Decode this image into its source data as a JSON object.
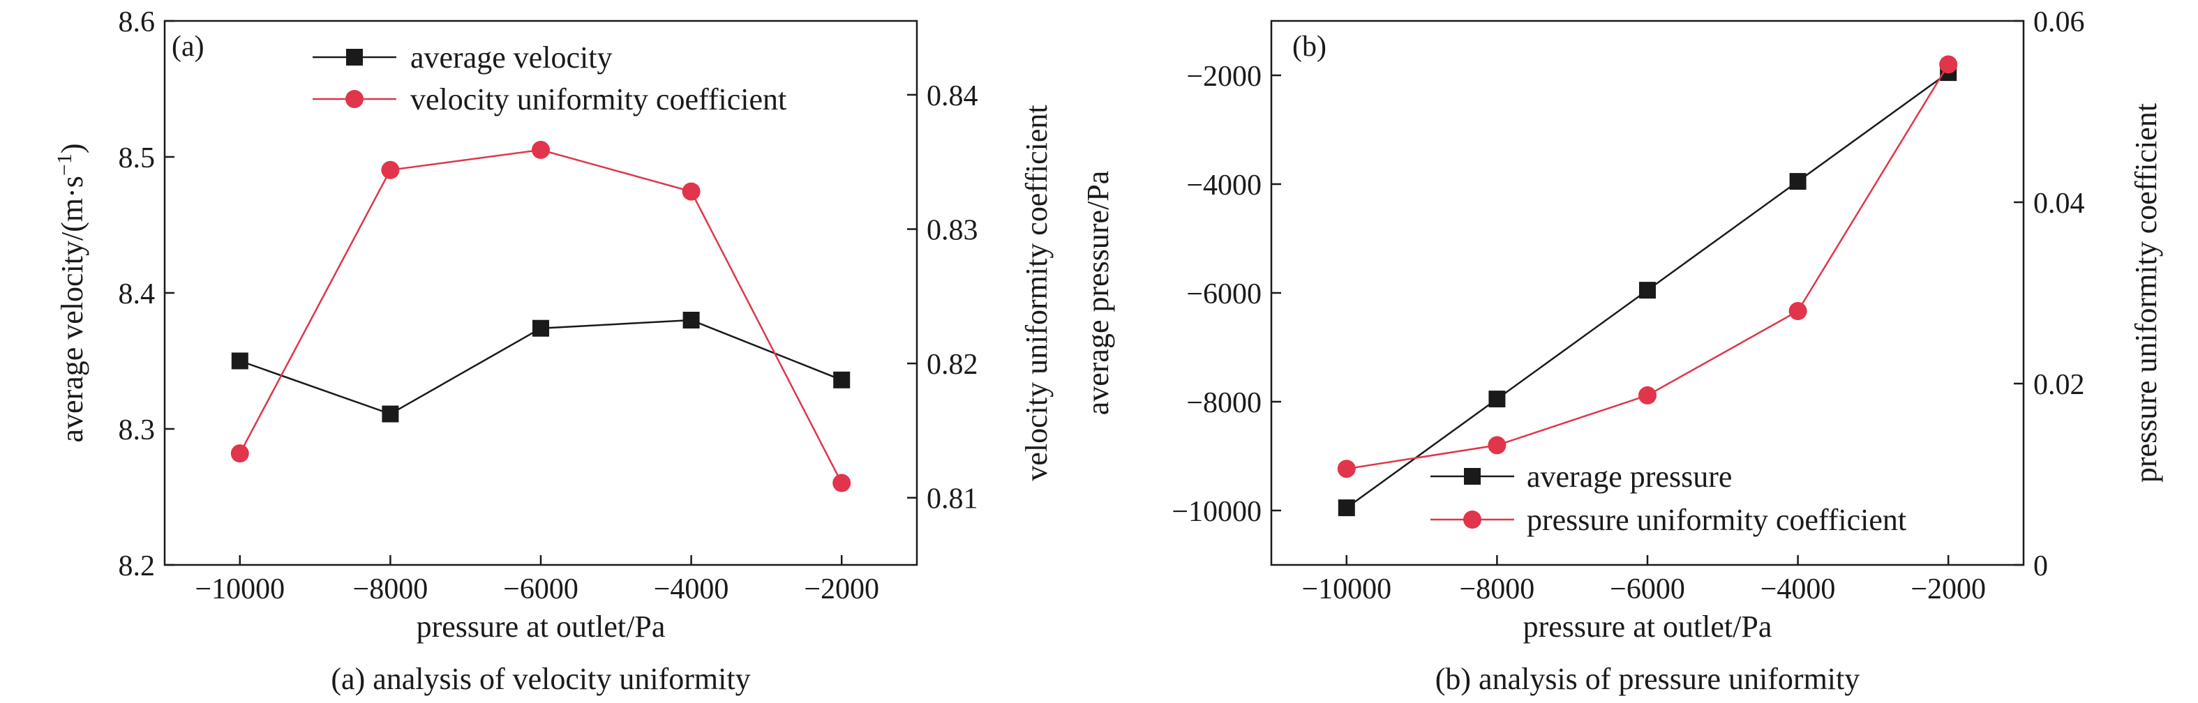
{
  "colors": {
    "black_series": "#1a1a1a",
    "red_series": "#e0354a",
    "axis": "#1a1a1a"
  },
  "chart_data": [
    {
      "type": "line",
      "panel_label": "(a)",
      "caption": "(a) analysis of velocity uniformity",
      "xlabel": "pressure at outlet/Pa",
      "ylabel": "average velocity/(m·s",
      "ylabel_sup": "−1",
      "ylabel_end": ")",
      "y2label": "velocity uniformity coefficient",
      "xlim": [
        -11000,
        -1000
      ],
      "ylim": [
        8.2,
        8.6
      ],
      "y2lim": [
        0.805,
        0.8455
      ],
      "x_ticks": [
        -10000,
        -8000,
        -6000,
        -4000,
        -2000
      ],
      "x_tick_labels": [
        "−10000",
        "−8000",
        "−6000",
        "−4000",
        "−2000"
      ],
      "y_ticks": [
        8.2,
        8.3,
        8.4,
        8.5,
        8.6
      ],
      "y_tick_labels": [
        "8.2",
        "8.3",
        "8.4",
        "8.5",
        "8.6"
      ],
      "y2_ticks": [
        0.81,
        0.82,
        0.83,
        0.84
      ],
      "y2_tick_labels": [
        "0.81",
        "0.82",
        "0.83",
        "0.84"
      ],
      "legend_position": "top-center",
      "x": [
        -10000,
        -8000,
        -6000,
        -4000,
        -2000
      ],
      "series": [
        {
          "name": "average velocity",
          "axis": "left",
          "marker": "square",
          "color": "#1a1a1a",
          "values": [
            8.35,
            8.311,
            8.374,
            8.38,
            8.336
          ]
        },
        {
          "name": "velocity uniformity coefficient",
          "axis": "right",
          "marker": "circle",
          "color": "#e0354a",
          "values": [
            0.8133,
            0.8344,
            0.8359,
            0.8328,
            0.8111
          ]
        }
      ]
    },
    {
      "type": "line",
      "panel_label": "(b)",
      "caption": "(b) analysis of pressure uniformity",
      "xlabel": "pressure at outlet/Pa",
      "ylabel": "average pressure/Pa",
      "y2label": "pressure uniformity coefficient",
      "xlim": [
        -11000,
        -1000
      ],
      "ylim": [
        -11000,
        -1000
      ],
      "y2lim": [
        0,
        0.06
      ],
      "x_ticks": [
        -10000,
        -8000,
        -6000,
        -4000,
        -2000
      ],
      "x_tick_labels": [
        "−10000",
        "−8000",
        "−6000",
        "−4000",
        "−2000"
      ],
      "y_ticks": [
        -10000,
        -8000,
        -6000,
        -4000,
        -2000
      ],
      "y_tick_labels": [
        "−10000",
        "−8000",
        "−6000",
        "−4000",
        "−2000"
      ],
      "y2_ticks": [
        0,
        0.02,
        0.04,
        0.06
      ],
      "y2_tick_labels": [
        "0",
        "0.02",
        "0.04",
        "0.06"
      ],
      "legend_position": "bottom-right",
      "x": [
        -10000,
        -8000,
        -6000,
        -4000,
        -2000
      ],
      "series": [
        {
          "name": "average pressure",
          "axis": "left",
          "marker": "square",
          "color": "#1a1a1a",
          "values": [
            -9950,
            -7950,
            -5950,
            -3950,
            -1950
          ]
        },
        {
          "name": "pressure uniformity coefficient",
          "axis": "right",
          "marker": "circle",
          "color": "#e0354a",
          "values": [
            0.0106,
            0.0132,
            0.0187,
            0.028,
            0.0552
          ]
        }
      ]
    }
  ]
}
